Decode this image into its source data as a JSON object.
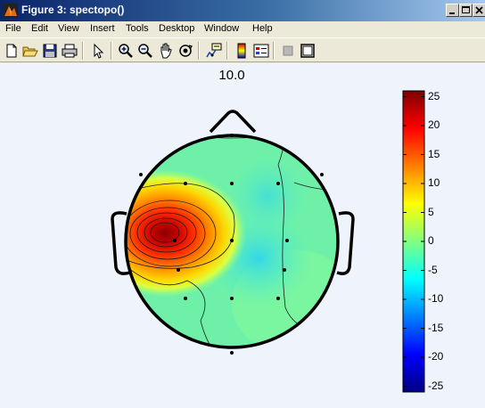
{
  "window": {
    "title": "Figure 3: spectopo()",
    "icon": "matlab-figure-icon",
    "controls": [
      "minimize-icon",
      "maximize-icon",
      "close-icon"
    ]
  },
  "menu": {
    "items": [
      "File",
      "Edit",
      "View",
      "Insert",
      "Tools",
      "Desktop",
      "Window",
      "Help"
    ]
  },
  "toolbar": {
    "tools": [
      "new-figure-icon",
      "open-file-icon",
      "save-icon",
      "print-icon",
      "edit-plot-arrow-icon",
      "zoom-in-icon",
      "zoom-out-icon",
      "pan-hand-icon",
      "rotate-3d-icon",
      "data-cursor-icon",
      "insert-colorbar-icon",
      "insert-legend-icon",
      "hide-plot-tools-icon",
      "show-plot-tools-icon"
    ]
  },
  "figure": {
    "title": "10.0",
    "colorbar": {
      "ticks": [
        "25",
        "20",
        "15",
        "10",
        "5",
        "0",
        "-5",
        "-10",
        "-15",
        "-20",
        "-25"
      ],
      "min": -26,
      "max": 26
    }
  }
}
